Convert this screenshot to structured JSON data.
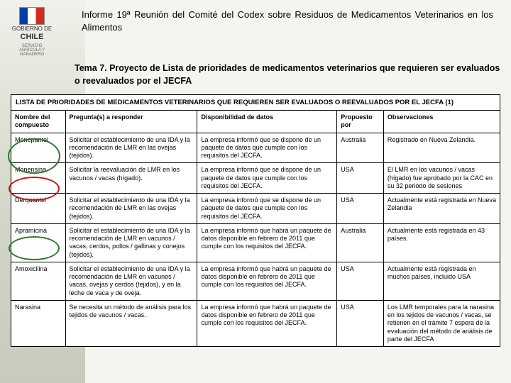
{
  "header": {
    "logo_country": "GOBIERNO DE",
    "logo_name": "CHILE",
    "logo_sub": "SERVICIO AGRÍCOLA Y GANADERO",
    "title": "Informe 19ª Reunión del Comité del Codex sobre Residuos de Medicamentos Veterinarios en los Alimentos",
    "subtitle": "Tema 7. Proyecto de Lista de prioridades de medicamentos veterinarios que requieren ser evaluados o reevaluados por el JECFA"
  },
  "table": {
    "caption": "LISTA DE PRIORIDADES DE MEDICAMENTOS VETERINARIOS QUE REQUIEREN SER EVALUADOS O REEVALUADOS POR EL JECFA  (1)",
    "columns": [
      "Nombre del compuesto",
      "Pregunta(s) a responder",
      "Disponibilidad de datos",
      "Propuesto por",
      "Observaciones"
    ],
    "rows": [
      {
        "nombre": "Monepantel",
        "pregunta": "Solicitar el establecimiento de una IDA y la recomendación de LMR en las ovejas (tejidos).",
        "dispon": "La empresa informó que se dispone de un paquete de datos que cumple con los requisitos del JECFA.",
        "prop": "Australia",
        "obs": "Registrado en Nueva Zelandia."
      },
      {
        "nombre": "Monensina",
        "pregunta": "Solicitar la reevaluación de LMR en los vacunos / vacas (hígado).",
        "dispon": "La empresa informó que se dispone de un paquete de datos que cumple con los requisitos del JECFA.",
        "prop": "USA",
        "obs": "El LMR en los vacunos / vacas (hígado) fue aprobado por la CAC en su 32 periodo de sesiones"
      },
      {
        "nombre": "Derquantel",
        "pregunta": "Solicitar el establecimiento de una IDA y la recomendación de LMR en las ovejas (tejidos).",
        "dispon": "La empresa informó que se dispone de un paquete de datos que cumple con los requisitos del JECFA.",
        "prop": "USA",
        "obs": "Actualmente está registrada en Nueva Zelandia"
      },
      {
        "nombre": "Apramicina",
        "pregunta": "Solicitar el establecimiento de una IDA y la recomendación de LMR en vacunos / vacas, cerdos, pollos / gallinas y conejos (tejidos).",
        "dispon": "La empresa informó que habrá un paquete de datos disponible en febrero de 2011 que cumple con los requisitos del JECFA.",
        "prop": "Australia",
        "obs": "Actualmente está registrada en 43 países."
      },
      {
        "nombre": "Amoxicilina",
        "pregunta": "Solicitar el establecimiento de una IDA y la recomendación de LMR en vacunos / vacas, ovejas y cerdos (tejidos), y en la leche de vaca y de oveja.",
        "dispon": "La empresa informó que habrá un paquete de datos disponible en febrero de 2011 que cumple con los requisitos del JECFA.",
        "prop": "USA",
        "obs": "Actualmente está registrada en muchos países, incluido USA"
      },
      {
        "nombre": "Narasina",
        "pregunta": "Se necesita un método de análisis para los tejidos de vacunos / vacas.",
        "dispon": "La empresa informó que habrá un paquete de datos disponible en febrero de 2011 que cumple con los requisitos del JECFA.",
        "prop": "USA",
        "obs": "Los LMR temporales para la narasina en los tejidos de vacunos / vacas, se retienen en el trámite 7 espera de la evaluación del método de análisis de parte del JECFA"
      }
    ]
  }
}
